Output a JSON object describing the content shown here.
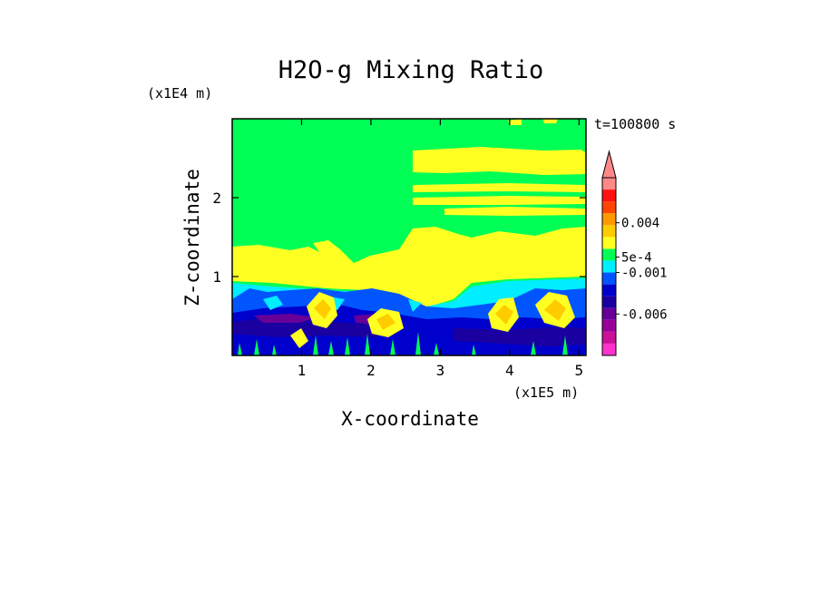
{
  "chart_data": {
    "type": "heatmap",
    "title": "H2O-g Mixing Ratio",
    "xlabel": "X-coordinate",
    "ylabel": "Z-coordinate",
    "x_unit": "(x1E5 m)",
    "y_unit": "(x1E4 m)",
    "time_label": "t=100800 s",
    "xlim": [
      0,
      5.1
    ],
    "ylim": [
      0,
      3
    ],
    "x_ticks": [
      1,
      2,
      3,
      4,
      5
    ],
    "y_ticks": [
      1,
      2
    ],
    "colorbar": {
      "levels": [
        {
          "color": "#ff33cc"
        },
        {
          "color": "#cc1199"
        },
        {
          "color": "#990099"
        },
        {
          "color": "#660099"
        },
        {
          "color": "#1a00a0"
        },
        {
          "color": "#0000cc"
        },
        {
          "color": "#0055ff"
        },
        {
          "color": "#00eeff"
        },
        {
          "color": "#00ff55"
        },
        {
          "color": "#ffff22"
        },
        {
          "color": "#ffcc00"
        },
        {
          "color": "#ff9900"
        },
        {
          "color": "#ff4400"
        },
        {
          "color": "#ff1111"
        },
        {
          "color": "#ff8888"
        }
      ],
      "tick_labels": [
        {
          "label": "-0.006",
          "at_level": 3.5
        },
        {
          "label": "-0.001",
          "at_level": 7.0
        },
        {
          "label": "5e-4",
          "at_level": 8.3
        },
        {
          "label": "0.004",
          "at_level": 11.2
        }
      ],
      "extend": "max"
    }
  }
}
